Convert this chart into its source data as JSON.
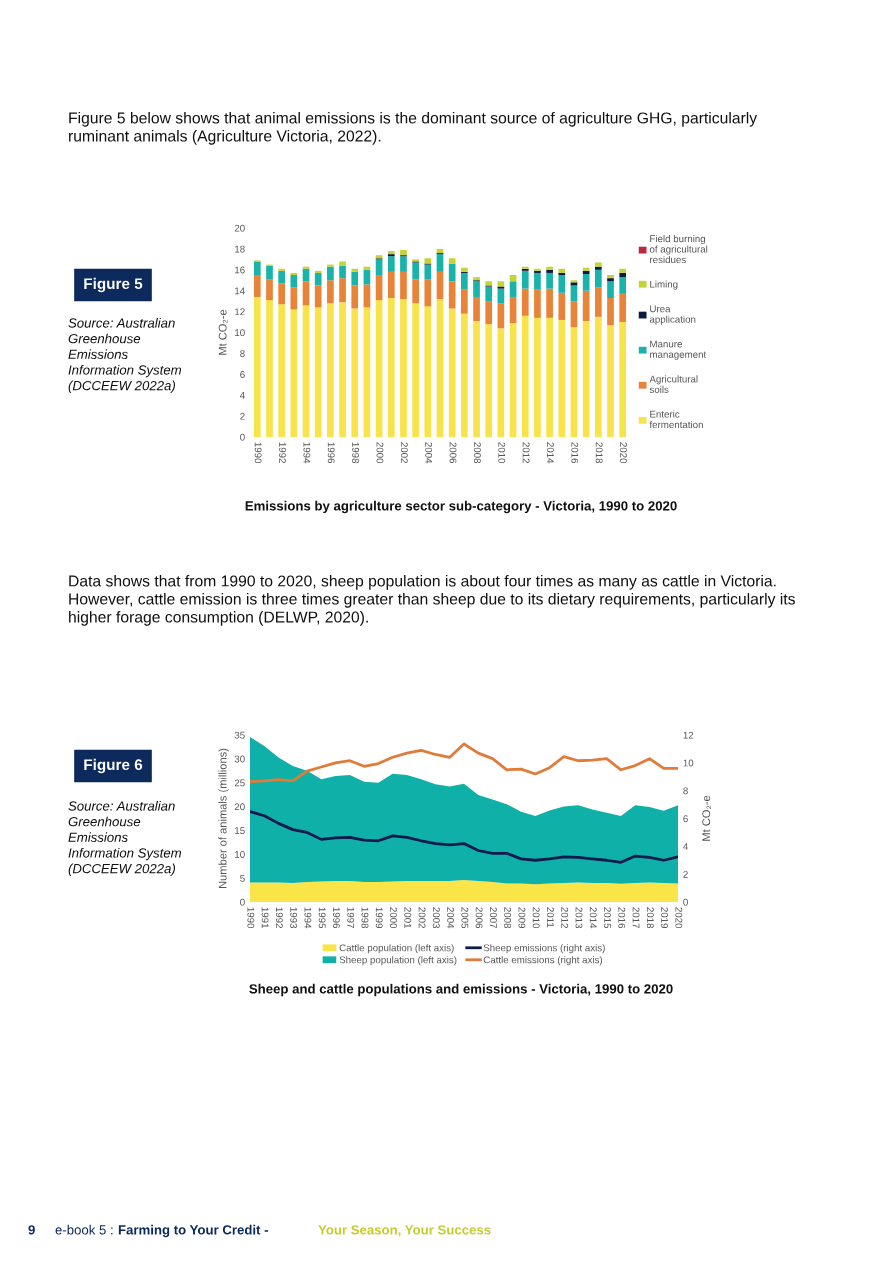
{
  "chart_data": [
    {
      "type": "bar",
      "stacked": true,
      "title": "Emissions by agriculture sector sub-category - Victoria, 1990 to 2020",
      "ylabel": "Mt CO₂-e",
      "annotations": [
        "Figure 5 below shows that animal emissions is the dominant source of agriculture GHG, particularly\nruminant animals (Agriculture Victoria, 2022).",
        "Figure 5",
        "Source: Australian\nGreenhouse\nEmissions\nInformation System\n(DCCEEW 2022a)"
      ],
      "categories": [
        "1990",
        null,
        "1992",
        null,
        "1994",
        null,
        "1996",
        null,
        "1998",
        null,
        "2000",
        null,
        "2002",
        null,
        "2004",
        null,
        "2006",
        null,
        "2008",
        null,
        "2010",
        null,
        "2012",
        null,
        "2014",
        null,
        "2016",
        null,
        "2018",
        null,
        "2020"
      ],
      "ylim": [
        0,
        20
      ],
      "yticks": [
        0,
        2,
        4,
        6,
        8,
        10,
        12,
        14,
        16,
        18,
        20
      ],
      "legend": "right",
      "series": [
        {
          "name": "Enteric\nfermentation",
          "color": "#f8e34a",
          "values": [
            13.4,
            13.1,
            12.7,
            12.2,
            12.6,
            12.4,
            12.8,
            12.9,
            12.3,
            12.4,
            13.1,
            13.3,
            13.2,
            12.8,
            12.5,
            13.2,
            12.3,
            11.8,
            11.1,
            10.8,
            10.4,
            10.9,
            11.6,
            11.4,
            11.4,
            11.2,
            10.5,
            11.1,
            11.5,
            10.7,
            11.0
          ]
        },
        {
          "name": "Agricultural\nsoils",
          "color": "#e8833a",
          "values": [
            2.1,
            2.0,
            2.0,
            2.1,
            2.3,
            2.1,
            2.2,
            2.3,
            2.2,
            2.2,
            2.4,
            2.5,
            2.6,
            2.3,
            2.6,
            2.6,
            2.6,
            2.3,
            2.3,
            2.2,
            2.4,
            2.5,
            2.6,
            2.7,
            2.8,
            2.6,
            2.5,
            2.9,
            2.8,
            2.6,
            2.7
          ]
        },
        {
          "name": "Manure\nmanagement",
          "color": "#1ab3ac",
          "values": [
            1.3,
            1.3,
            1.2,
            1.2,
            1.2,
            1.2,
            1.3,
            1.2,
            1.3,
            1.4,
            1.5,
            1.5,
            1.5,
            1.6,
            1.4,
            1.7,
            1.7,
            1.6,
            1.5,
            1.4,
            1.4,
            1.5,
            1.7,
            1.6,
            1.5,
            1.7,
            1.5,
            1.6,
            1.7,
            1.6,
            1.6
          ]
        },
        {
          "name": "Urea\napplication",
          "color": "#0d1b3e",
          "values": [
            null,
            null,
            null,
            null,
            null,
            null,
            null,
            null,
            null,
            null,
            0.1,
            0.2,
            0.1,
            0.1,
            0.1,
            0.1,
            null,
            0.1,
            0.1,
            0.1,
            0.2,
            null,
            0.2,
            0.2,
            0.3,
            0.2,
            0.3,
            0.3,
            0.3,
            0.3,
            0.4
          ]
        },
        {
          "name": "Liming",
          "color": "#c5d335",
          "values": [
            0.1,
            0.1,
            0.2,
            0.2,
            0.2,
            0.2,
            0.2,
            0.4,
            0.3,
            0.3,
            0.3,
            0.3,
            0.5,
            0.2,
            0.5,
            0.4,
            0.5,
            0.4,
            0.3,
            0.4,
            0.5,
            0.6,
            0.2,
            0.2,
            0.3,
            0.4,
            0.2,
            0.3,
            0.4,
            0.3,
            0.4
          ]
        },
        {
          "name": "Field burning\nof agricultural\nresidues",
          "color": "#c0263e",
          "values": [
            null,
            null,
            null,
            null,
            null,
            null,
            null,
            null,
            null,
            null,
            null,
            null,
            null,
            null,
            null,
            null,
            null,
            null,
            null,
            null,
            null,
            null,
            null,
            null,
            null,
            null,
            null,
            null,
            null,
            null,
            null
          ]
        }
      ]
    },
    {
      "type": "area",
      "stacked": true,
      "title": "Sheep and cattle populations and emissions - Victoria, 1990 to 2020",
      "ylabel": "Number of animals (millions)",
      "y2label": "Mt CO₂-e",
      "annotations": [
        "Data shows that from 1990 to 2020, sheep population is about four times as many as cattle in Victoria.\nHowever, cattle emission is three times greater than sheep due to its dietary requirements, particularly its\nhigher forage consumption (DELWP, 2020).",
        "Figure 6",
        "Source: Australian\nGreenhouse\nEmissions\nInformation System\n(DCCEEW 2022a)",
        "9",
        "e-book 5 :",
        "Farming to Your Credit -",
        "Your Season, Your Success"
      ],
      "categories": [
        "1990",
        "1991",
        "1992",
        "1993",
        "1994",
        "1995",
        "1996",
        "1997",
        "1998",
        "1999",
        "2000",
        "2001",
        "2002",
        "2003",
        "2004",
        "2005",
        "2006",
        "2007",
        "2008",
        "2009",
        "2010",
        "2011",
        "2012",
        "2013",
        "2014",
        "2015",
        "2016",
        "2017",
        "2018",
        "2019",
        "2020"
      ],
      "ylim": [
        0,
        35
      ],
      "yticks": [
        0,
        5,
        10,
        15,
        20,
        25,
        30,
        35
      ],
      "y2lim": [
        0,
        12
      ],
      "y2ticks": [
        0,
        2,
        4,
        6,
        8,
        10,
        12
      ],
      "legend": "bottom",
      "series": [
        {
          "name": "Cattle population (left axis)",
          "color": "#f9e547",
          "values": [
            4.1,
            4.1,
            4.1,
            4.0,
            4.2,
            4.3,
            4.4,
            4.4,
            4.2,
            4.2,
            4.3,
            4.4,
            4.4,
            4.4,
            4.4,
            4.6,
            4.4,
            4.2,
            3.9,
            3.9,
            3.7,
            3.9,
            4.0,
            4.1,
            4.0,
            4.0,
            3.8,
            4.0,
            4.1,
            4.0,
            3.9
          ]
        },
        {
          "name": "Sheep population (left axis)",
          "color": "#0fb0a8",
          "values": [
            30.5,
            28.6,
            26.2,
            24.5,
            23.3,
            21.4,
            22.0,
            22.2,
            21.0,
            20.8,
            22.6,
            22.2,
            21.3,
            20.3,
            19.8,
            20.2,
            18.0,
            17.3,
            16.6,
            15.0,
            14.3,
            15.3,
            16.0,
            16.2,
            15.4,
            14.7,
            14.2,
            16.3,
            15.8,
            15.1,
            16.4
          ]
        },
        {
          "name": "Sheep emissions (right axis)",
          "type": "line",
          "axis": "y2",
          "color": "#101a4d",
          "values": [
            6.5,
            6.2,
            5.65,
            5.2,
            5.0,
            4.5,
            4.6,
            4.65,
            4.45,
            4.4,
            4.75,
            4.65,
            4.4,
            4.2,
            4.1,
            4.2,
            3.7,
            3.5,
            3.5,
            3.1,
            3.0,
            3.1,
            3.25,
            3.2,
            3.1,
            3.0,
            2.85,
            3.3,
            3.2,
            3.0,
            3.25
          ]
        },
        {
          "name": "Cattle emissions (right axis)",
          "type": "line",
          "axis": "y2",
          "color": "#e07b39",
          "values": [
            8.65,
            8.7,
            8.8,
            8.7,
            9.4,
            9.7,
            10.0,
            10.15,
            9.75,
            9.95,
            10.4,
            10.7,
            10.9,
            10.6,
            10.4,
            11.35,
            10.7,
            10.3,
            9.5,
            9.55,
            9.2,
            9.65,
            10.45,
            10.15,
            10.2,
            10.3,
            9.5,
            9.8,
            10.3,
            9.6,
            9.6
          ]
        }
      ]
    }
  ]
}
